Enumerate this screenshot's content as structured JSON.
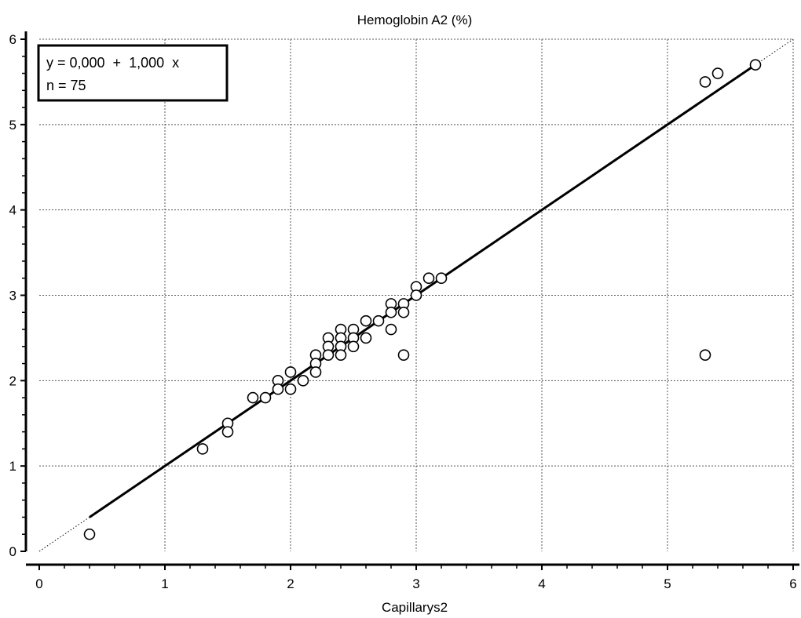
{
  "chart_data": {
    "type": "scatter",
    "title": "Hemoglobin A2 (%)",
    "xlabel": "Capillarys2",
    "ylabel": "",
    "xlim": [
      0,
      6
    ],
    "ylim": [
      0,
      6
    ],
    "xticks": [
      "0",
      "1",
      "2",
      "3",
      "4",
      "5",
      "6"
    ],
    "yticks": [
      "0",
      "1",
      "2",
      "3",
      "4",
      "5",
      "6"
    ],
    "grid": true,
    "legend": {
      "position": "top-left",
      "equation": "y = 0,000  +  1,000  x",
      "n_text": "n = 75"
    },
    "regression_line": {
      "slope": 1.0,
      "intercept": 0.0,
      "x_range": [
        0.4,
        5.7
      ]
    },
    "identity_line": {
      "slope": 1.0,
      "intercept": 0.0,
      "style": "dotted"
    },
    "points": [
      [
        0.4,
        0.2
      ],
      [
        1.3,
        1.2
      ],
      [
        1.5,
        1.5
      ],
      [
        1.5,
        1.4
      ],
      [
        1.7,
        1.8
      ],
      [
        1.8,
        1.8
      ],
      [
        1.9,
        2.0
      ],
      [
        1.9,
        1.9
      ],
      [
        2.0,
        2.1
      ],
      [
        2.0,
        1.9
      ],
      [
        2.1,
        2.0
      ],
      [
        2.2,
        2.3
      ],
      [
        2.2,
        2.2
      ],
      [
        2.2,
        2.1
      ],
      [
        2.3,
        2.5
      ],
      [
        2.3,
        2.4
      ],
      [
        2.3,
        2.3
      ],
      [
        2.4,
        2.6
      ],
      [
        2.4,
        2.5
      ],
      [
        2.4,
        2.4
      ],
      [
        2.4,
        2.3
      ],
      [
        2.5,
        2.6
      ],
      [
        2.5,
        2.5
      ],
      [
        2.5,
        2.4
      ],
      [
        2.6,
        2.7
      ],
      [
        2.6,
        2.5
      ],
      [
        2.7,
        2.7
      ],
      [
        2.8,
        2.9
      ],
      [
        2.8,
        2.8
      ],
      [
        2.8,
        2.6
      ],
      [
        2.9,
        2.9
      ],
      [
        2.9,
        2.8
      ],
      [
        2.9,
        2.3
      ],
      [
        3.0,
        3.1
      ],
      [
        3.0,
        3.0
      ],
      [
        3.1,
        3.2
      ],
      [
        3.2,
        3.2
      ],
      [
        5.3,
        5.5
      ],
      [
        5.4,
        5.6
      ],
      [
        5.7,
        5.7
      ],
      [
        5.3,
        2.3
      ]
    ]
  }
}
